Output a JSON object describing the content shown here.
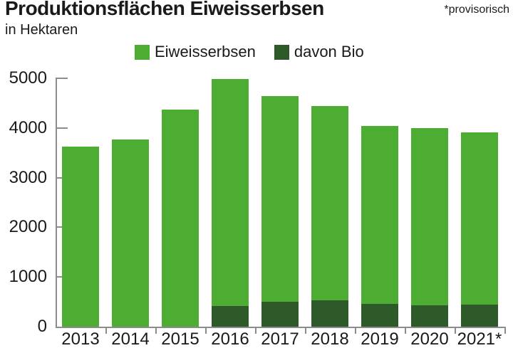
{
  "title": "Produktionsflächen Eiweisserbsen",
  "subtitle": "in Hektaren",
  "note": "*provisorisch",
  "legend": [
    {
      "label": "Eiweisserbsen",
      "color": "#4cad32"
    },
    {
      "label": "davon Bio",
      "color": "#2d5a28"
    }
  ],
  "colors": {
    "bar_light": "#4cad32",
    "bar_dark": "#2d5a28",
    "axis": "#8c8c8c",
    "text": "#1a1a1a",
    "background": "#ffffff"
  },
  "chart_data": {
    "type": "bar",
    "overlay_subset": true,
    "title": "Produktionsflächen Eiweisserbsen",
    "ylabel": "in Hektaren",
    "footnote": "*provisorisch",
    "categories": [
      "2013",
      "2014",
      "2015",
      "2016",
      "2017",
      "2018",
      "2019",
      "2020",
      "2021*"
    ],
    "series": [
      {
        "name": "Eiweisserbsen",
        "color": "#4cad32",
        "values": [
          3620,
          3770,
          4370,
          4990,
          4640,
          4440,
          4040,
          4000,
          3910
        ]
      },
      {
        "name": "davon Bio",
        "color": "#2d5a28",
        "values": [
          0,
          0,
          0,
          410,
          505,
          525,
          465,
          425,
          450
        ]
      }
    ],
    "ylim": [
      0,
      5000
    ],
    "yticks": [
      0,
      1000,
      2000,
      3000,
      4000,
      5000
    ],
    "grid": false,
    "legend_position": "top-center"
  }
}
